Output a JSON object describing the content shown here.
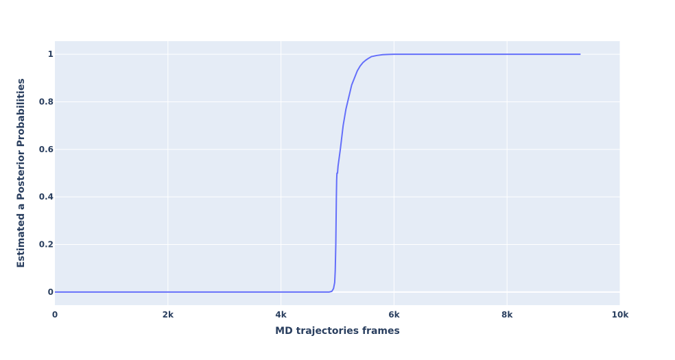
{
  "chart_data": {
    "type": "line",
    "title": "",
    "xlabel": "MD trajectories frames",
    "ylabel": "Estimated a Posterior Probabilities",
    "xlim": [
      0,
      10000
    ],
    "ylim": [
      -0.055,
      1.055
    ],
    "grid": true,
    "legend": "none",
    "x_ticks": [
      0,
      2000,
      4000,
      6000,
      8000,
      10000
    ],
    "x_tick_labels": [
      "0",
      "2k",
      "4k",
      "6k",
      "8k",
      "10k"
    ],
    "y_ticks": [
      0,
      0.2,
      0.4,
      0.6,
      0.8,
      1
    ],
    "y_tick_labels": [
      "0",
      "0.2",
      "0.4",
      "0.6",
      "0.8",
      "1"
    ],
    "colors": {
      "plot_bg": "#e5ecf6",
      "grid": "#ffffff",
      "line": "#636efa",
      "text": "#2a3f5f"
    },
    "series": [
      {
        "x": [
          0,
          2000,
          4000,
          4800,
          4850,
          4900,
          4930,
          4950,
          4960,
          4970,
          4975,
          4980,
          4985,
          4990,
          5000,
          5010,
          5050,
          5100,
          5150,
          5200,
          5250,
          5300,
          5350,
          5400,
          5450,
          5500,
          5550,
          5600,
          5700,
          5800,
          5900,
          6000,
          6100,
          6200,
          7000,
          8000,
          9000,
          9300
        ],
        "y": [
          0,
          0,
          0,
          0,
          0,
          0.003,
          0.015,
          0.04,
          0.09,
          0.2,
          0.3,
          0.4,
          0.47,
          0.5,
          0.5,
          0.53,
          0.6,
          0.7,
          0.77,
          0.82,
          0.87,
          0.9,
          0.93,
          0.95,
          0.965,
          0.975,
          0.983,
          0.99,
          0.995,
          0.998,
          0.999,
          1,
          1,
          1,
          1,
          1,
          1,
          1
        ]
      }
    ]
  }
}
